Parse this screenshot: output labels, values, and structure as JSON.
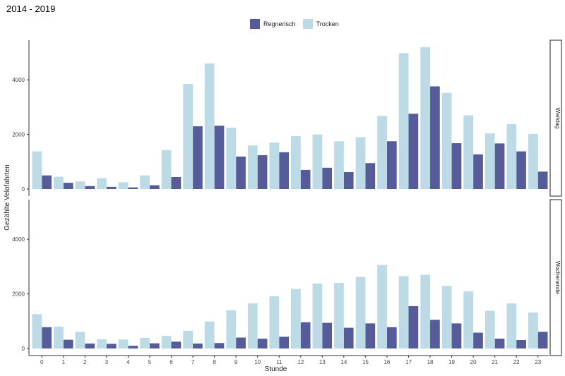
{
  "colors": {
    "rainy": "#555c99",
    "dry": "#bddbe6"
  },
  "chart_data": {
    "type": "bar",
    "title": "2014 - 2019",
    "xlabel": "Stunde",
    "ylabel": "Gezählte Velofahrten",
    "ylim": [
      0,
      5400
    ],
    "yticks": [
      0,
      2000,
      4000
    ],
    "grid": false,
    "legend_position": "top",
    "categories": [
      "0",
      "1",
      "2",
      "3",
      "4",
      "5",
      "6",
      "7",
      "8",
      "9",
      "10",
      "11",
      "12",
      "13",
      "14",
      "15",
      "16",
      "17",
      "18",
      "19",
      "20",
      "21",
      "22",
      "23"
    ],
    "legend": [
      "Regnerisch",
      "Trocken"
    ],
    "panels": [
      {
        "name": "Werktag",
        "series": [
          {
            "name": "Regnerisch",
            "values": [
              500,
              230,
              110,
              80,
              60,
              140,
              440,
              2300,
              2320,
              1190,
              1240,
              1350,
              700,
              780,
              620,
              950,
              1750,
              2760,
              3760,
              1680,
              1270,
              1670,
              1380,
              640
            ]
          },
          {
            "name": "Trocken",
            "values": [
              1380,
              450,
              280,
              400,
              250,
              500,
              1430,
              3850,
              4600,
              2250,
              1600,
              1700,
              1940,
              2000,
              1750,
              1900,
              2680,
              4980,
              5200,
              3520,
              2700,
              2040,
              2380,
              2020
            ]
          }
        ]
      },
      {
        "name": "Wochenende",
        "series": [
          {
            "name": "Regnerisch",
            "values": [
              780,
              320,
              180,
              170,
              100,
              190,
              250,
              180,
              200,
              400,
              360,
              430,
              960,
              940,
              760,
              920,
              780,
              1550,
              1050,
              920,
              580,
              360,
              310,
              610
            ]
          },
          {
            "name": "Trocken",
            "values": [
              1260,
              800,
              610,
              340,
              330,
              390,
              460,
              650,
              990,
              1400,
              1650,
              1910,
              2180,
              2380,
              2400,
              2620,
              3060,
              2650,
              2700,
              2290,
              2090,
              1380,
              1650,
              1320
            ]
          }
        ]
      }
    ]
  }
}
